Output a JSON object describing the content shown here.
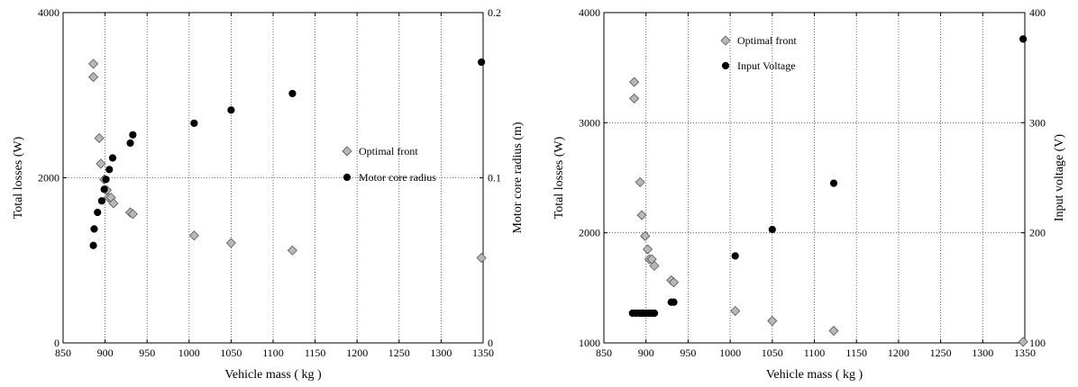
{
  "chart_data": [
    {
      "type": "scatter",
      "xlabel": "Vehicle mass ( kg )",
      "ylabel_left": "Total losses  (W)",
      "ylabel_right": "Motor core radius (m)",
      "xlim": [
        850,
        1350
      ],
      "xticks": [
        "850",
        "900",
        "950",
        "1000",
        "1050",
        "1100",
        "1150",
        "1200",
        "1250",
        "1300",
        "1350"
      ],
      "ylim_left": [
        0,
        4000
      ],
      "yticks_left": [
        "0",
        "2000",
        "4000"
      ],
      "ylim_right": [
        0,
        0.2
      ],
      "yticks_right": [
        "0",
        "0.1",
        "0.2"
      ],
      "grid": "dotted",
      "legend_position": "center-right",
      "series": [
        {
          "name": "Optimal front",
          "marker": "diamond",
          "color": "#b8b8b8",
          "axis": "left",
          "x": [
            886,
            886,
            893,
            895,
            899,
            902,
            904,
            907,
            910,
            930,
            933,
            1006,
            1050,
            1123,
            1348
          ],
          "y": [
            3380,
            3220,
            2480,
            2170,
            1980,
            1850,
            1760,
            1760,
            1690,
            1580,
            1560,
            1300,
            1210,
            1120,
            1030
          ]
        },
        {
          "name": "Motor core radius",
          "marker": "circle",
          "color": "#000000",
          "axis": "right",
          "x": [
            886,
            887,
            891,
            896,
            899,
            901,
            905,
            909,
            930,
            933,
            1006,
            1050,
            1123,
            1348
          ],
          "y": [
            0.059,
            0.069,
            0.079,
            0.086,
            0.093,
            0.099,
            0.105,
            0.112,
            0.121,
            0.126,
            0.133,
            0.141,
            0.151,
            0.17
          ]
        }
      ]
    },
    {
      "type": "scatter",
      "xlabel": "Vehicle mass ( kg )",
      "ylabel_left": "Total losses  (W)",
      "ylabel_right": "Input voltage (V)",
      "xlim": [
        850,
        1350
      ],
      "xticks": [
        "850",
        "900",
        "950",
        "1000",
        "1050",
        "1100",
        "1150",
        "1200",
        "1250",
        "1300",
        "1350"
      ],
      "ylim_left": [
        1000,
        4000
      ],
      "yticks_left": [
        "1000",
        "2000",
        "3000",
        "4000"
      ],
      "ylim_right": [
        100,
        400
      ],
      "yticks_right": [
        "100",
        "200",
        "300",
        "400"
      ],
      "grid": "dotted",
      "legend_position": "top-left",
      "series": [
        {
          "name": "Optimal front",
          "marker": "diamond",
          "color": "#b8b8b8",
          "axis": "left",
          "x": [
            886,
            886,
            893,
            895,
            899,
            902,
            904,
            907,
            910,
            930,
            933,
            1006,
            1050,
            1123,
            1348
          ],
          "y": [
            3370,
            3220,
            2460,
            2160,
            1970,
            1850,
            1760,
            1760,
            1700,
            1570,
            1550,
            1290,
            1200,
            1110,
            1010
          ]
        },
        {
          "name": "Input Voltage",
          "marker": "circle",
          "color": "#000000",
          "axis": "right",
          "x": [
            884,
            888,
            892,
            895,
            898,
            901,
            904,
            907,
            910,
            930,
            933,
            1006,
            1050,
            1123,
            1348
          ],
          "y": [
            127,
            127,
            127,
            127,
            127,
            127,
            127,
            127,
            127,
            137,
            137,
            179,
            203,
            245,
            376
          ]
        }
      ]
    }
  ]
}
